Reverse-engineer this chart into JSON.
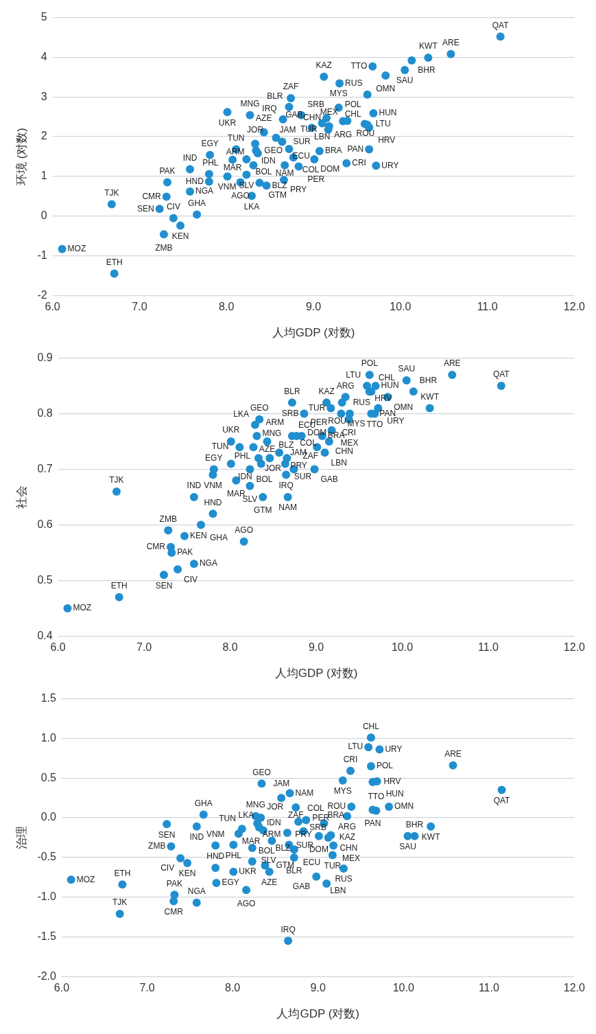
{
  "chart_data": [
    {
      "type": "scatter",
      "xlabel": "人均GDP (对数)",
      "ylabel": "环境 (对数)",
      "color": "#218fcf",
      "marker": "circle",
      "grid": "y",
      "xlim": [
        6,
        12
      ],
      "xticks": [
        {
          "value": 6,
          "label": "6.0"
        },
        {
          "value": 7,
          "label": "7.0"
        },
        {
          "value": 8,
          "label": "8.0"
        },
        {
          "value": 9,
          "label": "9.0"
        },
        {
          "value": 10,
          "label": "10.0"
        },
        {
          "value": 11,
          "label": "11.0"
        },
        {
          "value": 12,
          "label": "12.0"
        }
      ],
      "ylim": [
        -2,
        5
      ],
      "yticks": [
        -2,
        -1,
        0,
        1,
        2,
        3,
        4,
        5
      ],
      "x": [
        6.11,
        6.71,
        6.68,
        7.23,
        7.39,
        7.47,
        7.28,
        7.66,
        7.31,
        7.32,
        7.58,
        7.58,
        7.81,
        7.8,
        7.8,
        8.01,
        8.27,
        8.01,
        8.16,
        8.11,
        8.23,
        8.07,
        8.34,
        8.33,
        8.36,
        8.43,
        8.31,
        8.23,
        8.29,
        8.38,
        8.46,
        8.57,
        8.64,
        8.72,
        8.77,
        8.67,
        8.83,
        8.66,
        8.65,
        8.74,
        8.72,
        8.86,
        11.15,
        10.58,
        10.32,
        10.13,
        10.05,
        9.68,
        9.83,
        9.12,
        9.3,
        9.62,
        9.29,
        9.69,
        9.34,
        9.39,
        9.59,
        9.64,
        9.62,
        9.64,
        9.72,
        9.38,
        9.15,
        9.1,
        9.17,
        9.18,
        8.98,
        9.07,
        9.01
      ],
      "values": [
        -0.83,
        -1.45,
        0.3,
        0.18,
        -0.05,
        -0.24,
        -0.46,
        0.04,
        0.49,
        0.85,
        0.62,
        1.18,
        1.54,
        1.06,
        0.87,
        2.62,
        2.54,
        1.0,
        0.85,
        1.68,
        1.43,
        1.42,
        1.65,
        1.82,
        1.58,
        2.11,
        1.28,
        1.04,
        0.51,
        0.84,
        0.77,
        1.97,
        1.87,
        1.69,
        1.48,
        1.28,
        1.25,
        0.91,
        2.44,
        2.97,
        2.75,
        2.54,
        4.52,
        4.08,
        3.99,
        3.92,
        3.68,
        3.77,
        3.54,
        3.51,
        3.34,
        3.06,
        2.73,
        2.59,
        2.39,
        2.4,
        2.32,
        2.23,
        2.3,
        1.68,
        1.27,
        1.33,
        2.47,
        2.34,
        2.18,
        2.26,
        2.22,
        1.64,
        1.43
      ],
      "annotations": [
        {
          "text": "MOZ",
          "x": 6.11,
          "y": -0.83
        },
        {
          "text": "ETH",
          "x": 6.71,
          "y": -1.45
        },
        {
          "text": "TJK",
          "x": 6.68,
          "y": 0.3
        },
        {
          "text": "SEN",
          "x": 7.23,
          "y": 0.18
        },
        {
          "text": "CIV",
          "x": 7.39,
          "y": -0.05
        },
        {
          "text": "KEN",
          "x": 7.47,
          "y": -0.24
        },
        {
          "text": "ZMB",
          "x": 7.28,
          "y": -0.46
        },
        {
          "text": "GHA",
          "x": 7.66,
          "y": 0.04
        },
        {
          "text": "CMR",
          "x": 7.31,
          "y": 0.49
        },
        {
          "text": "PAK",
          "x": 7.32,
          "y": 0.85
        },
        {
          "text": "NGA",
          "x": 7.58,
          "y": 0.62
        },
        {
          "text": "IND",
          "x": 7.58,
          "y": 1.18
        },
        {
          "text": "EGY",
          "x": 7.81,
          "y": 1.54
        },
        {
          "text": "VNM",
          "x": 7.8,
          "y": 1.06
        },
        {
          "text": "HND",
          "x": 7.8,
          "y": 0.87
        },
        {
          "text": "UKR",
          "x": 8.01,
          "y": 2.62
        },
        {
          "text": "MNG",
          "x": 8.27,
          "y": 2.54
        },
        {
          "text": "PHL",
          "x": 8.01,
          "y": 1.0
        },
        {
          "text": "AGO",
          "x": 8.16,
          "y": 0.85
        },
        {
          "text": "TUN",
          "x": 8.11,
          "y": 1.68
        },
        {
          "text": "BOL",
          "x": 8.23,
          "y": 1.43
        },
        {
          "text": "MAR",
          "x": 8.07,
          "y": 1.42
        },
        {
          "text": "GEO",
          "x": 8.34,
          "y": 1.65
        },
        {
          "text": "JOR",
          "x": 8.33,
          "y": 1.82
        },
        {
          "text": "IDN",
          "x": 8.36,
          "y": 1.58
        },
        {
          "text": "AZE",
          "x": 8.43,
          "y": 2.11
        },
        {
          "text": "ARM",
          "x": 8.31,
          "y": 1.28
        },
        {
          "text": "SLV",
          "x": 8.23,
          "y": 1.04
        },
        {
          "text": "LKA",
          "x": 8.29,
          "y": 0.51
        },
        {
          "text": "GTM",
          "x": 8.38,
          "y": 0.84
        },
        {
          "text": "BLZ",
          "x": 8.46,
          "y": 0.77
        },
        {
          "text": "JAM",
          "x": 8.57,
          "y": 1.97
        },
        {
          "text": "SUR",
          "x": 8.64,
          "y": 1.87
        },
        {
          "text": "ECU",
          "x": 8.72,
          "y": 1.69
        },
        {
          "text": "COL",
          "x": 8.77,
          "y": 1.48
        },
        {
          "text": "NAM",
          "x": 8.67,
          "y": 1.28
        },
        {
          "text": "PER",
          "x": 8.83,
          "y": 1.25
        },
        {
          "text": "PRY",
          "x": 8.66,
          "y": 0.91
        },
        {
          "text": "IRQ",
          "x": 8.65,
          "y": 2.44
        },
        {
          "text": "ZAF",
          "x": 8.74,
          "y": 2.97
        },
        {
          "text": "BLR",
          "x": 8.72,
          "y": 2.75
        },
        {
          "text": "SRB",
          "x": 8.86,
          "y": 2.54
        },
        {
          "text": "QAT",
          "x": 11.15,
          "y": 4.52
        },
        {
          "text": "ARE",
          "x": 10.58,
          "y": 4.08
        },
        {
          "text": "KWT",
          "x": 10.32,
          "y": 3.99
        },
        {
          "text": "BHR",
          "x": 10.13,
          "y": 3.92
        },
        {
          "text": "SAU",
          "x": 10.05,
          "y": 3.68
        },
        {
          "text": "TTO",
          "x": 9.68,
          "y": 3.77
        },
        {
          "text": "OMN",
          "x": 9.83,
          "y": 3.54
        },
        {
          "text": "KAZ",
          "x": 9.12,
          "y": 3.51
        },
        {
          "text": "RUS",
          "x": 9.3,
          "y": 3.34
        },
        {
          "text": "POL",
          "x": 9.62,
          "y": 3.06
        },
        {
          "text": "MYS",
          "x": 9.29,
          "y": 2.73
        },
        {
          "text": "HUN",
          "x": 9.69,
          "y": 2.59
        },
        {
          "text": "ARG",
          "x": 9.34,
          "y": 2.39
        },
        {
          "text": "ROU",
          "x": 9.39,
          "y": 2.4
        },
        {
          "text": "LTU",
          "x": 9.59,
          "y": 2.32
        },
        {
          "text": "HRV",
          "x": 9.64,
          "y": 2.23
        },
        {
          "text": "CHL",
          "x": 9.62,
          "y": 2.3
        },
        {
          "text": "PAN",
          "x": 9.64,
          "y": 1.68
        },
        {
          "text": "URY",
          "x": 9.72,
          "y": 1.27
        },
        {
          "text": "CRI",
          "x": 9.38,
          "y": 1.33
        },
        {
          "text": "CHN",
          "x": 9.15,
          "y": 2.47
        },
        {
          "text": "LBN",
          "x": 9.1,
          "y": 2.34
        },
        {
          "text": "TUR",
          "x": 9.17,
          "y": 2.18
        },
        {
          "text": "MEX",
          "x": 9.18,
          "y": 2.26
        },
        {
          "text": "GAB",
          "x": 8.98,
          "y": 2.22
        },
        {
          "text": "BRA",
          "x": 9.07,
          "y": 1.64
        },
        {
          "text": "DOM",
          "x": 9.01,
          "y": 1.43
        }
      ]
    },
    {
      "type": "scatter",
      "xlabel": "人均GDP (对数)",
      "ylabel": "社会",
      "color": "#218fcf",
      "marker": "circle",
      "grid": "y",
      "xlim": [
        6,
        12
      ],
      "xticks": [
        {
          "value": 6,
          "label": "6.0"
        },
        {
          "value": 7,
          "label": "7.0"
        },
        {
          "value": 8,
          "label": "8.0"
        },
        {
          "value": 9,
          "label": "9.0"
        },
        {
          "value": 10,
          "label": "10.0"
        },
        {
          "value": 11,
          "label": "11.0"
        },
        {
          "value": 12,
          "label": "12.0"
        }
      ],
      "ylim": [
        0.4,
        0.9
      ],
      "yticks": [
        0.4,
        0.5,
        0.6,
        0.7,
        0.8,
        0.9
      ],
      "x": [
        6.11,
        6.71,
        6.68,
        7.23,
        7.39,
        7.47,
        7.28,
        7.66,
        7.31,
        7.32,
        7.58,
        7.58,
        7.81,
        7.8,
        7.8,
        8.01,
        8.27,
        8.01,
        8.16,
        8.11,
        8.23,
        8.07,
        8.34,
        8.33,
        8.36,
        8.43,
        8.31,
        8.23,
        8.29,
        8.38,
        8.46,
        8.57,
        8.64,
        8.72,
        8.77,
        8.67,
        8.83,
        8.66,
        8.65,
        8.74,
        8.72,
        8.86,
        11.15,
        10.58,
        10.32,
        10.13,
        10.05,
        9.68,
        9.83,
        9.12,
        9.3,
        9.62,
        9.29,
        9.69,
        9.34,
        9.39,
        9.59,
        9.64,
        9.62,
        9.64,
        9.72,
        9.38,
        9.15,
        9.1,
        9.17,
        9.18,
        8.98,
        9.07,
        9.01
      ],
      "values": [
        0.45,
        0.47,
        0.66,
        0.51,
        0.52,
        0.58,
        0.59,
        0.6,
        0.56,
        0.55,
        0.53,
        0.65,
        0.7,
        0.69,
        0.62,
        0.75,
        0.74,
        0.71,
        0.57,
        0.74,
        0.7,
        0.68,
        0.79,
        0.72,
        0.71,
        0.75,
        0.76,
        0.67,
        0.78,
        0.65,
        0.72,
        0.73,
        0.71,
        0.76,
        0.76,
        0.65,
        0.76,
        0.72,
        0.69,
        0.7,
        0.82,
        0.8,
        0.85,
        0.87,
        0.81,
        0.84,
        0.86,
        0.8,
        0.83,
        0.82,
        0.82,
        0.87,
        0.8,
        0.85,
        0.83,
        0.8,
        0.85,
        0.84,
        0.84,
        0.8,
        0.81,
        0.79,
        0.75,
        0.73,
        0.81,
        0.77,
        0.7,
        0.76,
        0.74
      ],
      "annotations": [
        {
          "text": "MOZ",
          "x": 6.11,
          "y": 0.45
        },
        {
          "text": "ETH",
          "x": 6.71,
          "y": 0.47
        },
        {
          "text": "TJK",
          "x": 6.68,
          "y": 0.66
        },
        {
          "text": "SEN",
          "x": 7.23,
          "y": 0.51
        },
        {
          "text": "CIV",
          "x": 7.39,
          "y": 0.52
        },
        {
          "text": "KEN",
          "x": 7.47,
          "y": 0.58
        },
        {
          "text": "ZMB",
          "x": 7.28,
          "y": 0.59
        },
        {
          "text": "GHA",
          "x": 7.66,
          "y": 0.6
        },
        {
          "text": "CMR",
          "x": 7.31,
          "y": 0.56
        },
        {
          "text": "PAK",
          "x": 7.32,
          "y": 0.55
        },
        {
          "text": "NGA",
          "x": 7.58,
          "y": 0.53
        },
        {
          "text": "IND",
          "x": 7.58,
          "y": 0.65
        },
        {
          "text": "EGY",
          "x": 7.81,
          "y": 0.7
        },
        {
          "text": "VNM",
          "x": 7.8,
          "y": 0.69
        },
        {
          "text": "HND",
          "x": 7.8,
          "y": 0.62
        },
        {
          "text": "UKR",
          "x": 8.01,
          "y": 0.75
        },
        {
          "text": "MNG",
          "x": 8.27,
          "y": 0.74
        },
        {
          "text": "PHL",
          "x": 8.01,
          "y": 0.71
        },
        {
          "text": "AGO",
          "x": 8.16,
          "y": 0.57
        },
        {
          "text": "TUN",
          "x": 8.11,
          "y": 0.74
        },
        {
          "text": "BOL",
          "x": 8.23,
          "y": 0.7
        },
        {
          "text": "MAR",
          "x": 8.07,
          "y": 0.68
        },
        {
          "text": "GEO",
          "x": 8.34,
          "y": 0.79
        },
        {
          "text": "JOR",
          "x": 8.33,
          "y": 0.72
        },
        {
          "text": "IDN",
          "x": 8.36,
          "y": 0.71
        },
        {
          "text": "AZE",
          "x": 8.43,
          "y": 0.75
        },
        {
          "text": "ARM",
          "x": 8.31,
          "y": 0.76
        },
        {
          "text": "SLV",
          "x": 8.23,
          "y": 0.67
        },
        {
          "text": "LKA",
          "x": 8.29,
          "y": 0.78
        },
        {
          "text": "GTM",
          "x": 8.38,
          "y": 0.65
        },
        {
          "text": "BLZ",
          "x": 8.46,
          "y": 0.72
        },
        {
          "text": "JAM",
          "x": 8.57,
          "y": 0.73
        },
        {
          "text": "SUR",
          "x": 8.64,
          "y": 0.71
        },
        {
          "text": "ECU",
          "x": 8.72,
          "y": 0.76
        },
        {
          "text": "COL",
          "x": 8.77,
          "y": 0.76
        },
        {
          "text": "NAM",
          "x": 8.67,
          "y": 0.65
        },
        {
          "text": "PER",
          "x": 8.83,
          "y": 0.76
        },
        {
          "text": "PRY",
          "x": 8.66,
          "y": 0.72
        },
        {
          "text": "IRQ",
          "x": 8.65,
          "y": 0.69
        },
        {
          "text": "ZAF",
          "x": 8.74,
          "y": 0.7
        },
        {
          "text": "BLR",
          "x": 8.72,
          "y": 0.82
        },
        {
          "text": "SRB",
          "x": 8.86,
          "y": 0.8
        },
        {
          "text": "QAT",
          "x": 11.15,
          "y": 0.85
        },
        {
          "text": "ARE",
          "x": 10.58,
          "y": 0.87
        },
        {
          "text": "KWT",
          "x": 10.32,
          "y": 0.81
        },
        {
          "text": "BHR",
          "x": 10.13,
          "y": 0.84
        },
        {
          "text": "SAU",
          "x": 10.05,
          "y": 0.86
        },
        {
          "text": "TTO",
          "x": 9.68,
          "y": 0.8
        },
        {
          "text": "OMN",
          "x": 9.83,
          "y": 0.83
        },
        {
          "text": "KAZ",
          "x": 9.12,
          "y": 0.82
        },
        {
          "text": "RUS",
          "x": 9.3,
          "y": 0.82
        },
        {
          "text": "POL",
          "x": 9.62,
          "y": 0.87
        },
        {
          "text": "MYS",
          "x": 9.29,
          "y": 0.8
        },
        {
          "text": "HUN",
          "x": 9.69,
          "y": 0.85
        },
        {
          "text": "ARG",
          "x": 9.34,
          "y": 0.83
        },
        {
          "text": "ROU",
          "x": 9.39,
          "y": 0.8
        },
        {
          "text": "LTU",
          "x": 9.59,
          "y": 0.85
        },
        {
          "text": "HRV",
          "x": 9.64,
          "y": 0.84
        },
        {
          "text": "CHL",
          "x": 9.62,
          "y": 0.84
        },
        {
          "text": "PAN",
          "x": 9.64,
          "y": 0.8
        },
        {
          "text": "URY",
          "x": 9.72,
          "y": 0.81
        },
        {
          "text": "CRI",
          "x": 9.38,
          "y": 0.79
        },
        {
          "text": "CHN",
          "x": 9.15,
          "y": 0.75
        },
        {
          "text": "LBN",
          "x": 9.1,
          "y": 0.73
        },
        {
          "text": "TUR",
          "x": 9.17,
          "y": 0.81
        },
        {
          "text": "MEX",
          "x": 9.18,
          "y": 0.77
        },
        {
          "text": "GAB",
          "x": 8.98,
          "y": 0.7
        },
        {
          "text": "BRA",
          "x": 9.07,
          "y": 0.76
        },
        {
          "text": "DOM",
          "x": 9.01,
          "y": 0.74
        }
      ]
    },
    {
      "type": "scatter",
      "xlabel": "人均GDP (对数)",
      "ylabel": "治理",
      "color": "#218fcf",
      "marker": "circle",
      "grid": "y",
      "xlim": [
        6,
        12
      ],
      "xticks": [
        {
          "value": 6,
          "label": "6.0"
        },
        {
          "value": 7,
          "label": "7.0"
        },
        {
          "value": 8,
          "label": "8.0"
        },
        {
          "value": 9,
          "label": "9.0"
        },
        {
          "value": 10,
          "label": "10.0"
        },
        {
          "value": 11,
          "label": "11.0"
        },
        {
          "value": 12,
          "label": "12.0"
        }
      ],
      "ylim": [
        -2,
        1.5
      ],
      "yticks": [
        {
          "value": -2,
          "label": "-2.0"
        },
        -1.5,
        {
          "value": -1,
          "label": "-1.0"
        },
        -0.5,
        {
          "value": 0,
          "label": "0.0"
        },
        0.5,
        {
          "value": 1,
          "label": "1.0"
        },
        1.5
      ],
      "x": [
        6.11,
        6.71,
        6.68,
        7.23,
        7.39,
        7.47,
        7.28,
        7.66,
        7.31,
        7.32,
        7.58,
        7.58,
        7.81,
        7.8,
        7.8,
        8.01,
        8.27,
        8.01,
        8.16,
        8.11,
        8.23,
        8.07,
        8.34,
        8.33,
        8.36,
        8.43,
        8.31,
        8.23,
        8.29,
        8.38,
        8.46,
        8.57,
        8.64,
        8.72,
        8.77,
        8.67,
        8.83,
        8.66,
        8.65,
        8.74,
        8.72,
        8.86,
        11.15,
        10.58,
        10.32,
        10.13,
        10.05,
        9.68,
        9.83,
        9.12,
        9.3,
        9.62,
        9.29,
        9.69,
        9.34,
        9.39,
        9.59,
        9.64,
        9.62,
        9.64,
        9.72,
        9.38,
        9.15,
        9.1,
        9.17,
        9.18,
        8.98,
        9.07,
        9.01
      ],
      "values": [
        -0.78,
        -0.84,
        -1.21,
        -0.08,
        -0.51,
        -0.57,
        -0.36,
        0.04,
        -1.05,
        -0.97,
        -1.07,
        -0.11,
        -0.82,
        -0.35,
        -0.63,
        -0.68,
        0.02,
        -0.34,
        -0.91,
        -0.14,
        -0.55,
        -0.2,
        0.43,
        0.0,
        -0.16,
        -0.68,
        -0.12,
        -0.38,
        -0.07,
        -0.6,
        -0.29,
        0.25,
        -0.19,
        -0.4,
        -0.05,
        0.31,
        -0.17,
        -0.34,
        -1.55,
        0.13,
        -0.5,
        -0.03,
        0.35,
        0.66,
        -0.11,
        -0.23,
        -0.23,
        0.09,
        0.14,
        -0.25,
        -0.64,
        0.65,
        0.47,
        0.46,
        0.02,
        0.14,
        0.89,
        0.45,
        1.01,
        0.1,
        0.86,
        0.59,
        -0.22,
        -0.83,
        -0.47,
        -0.35,
        -0.74,
        -0.07,
        -0.23
      ],
      "annotations": [
        {
          "text": "MOZ",
          "x": 6.11,
          "y": -0.78
        },
        {
          "text": "ETH",
          "x": 6.71,
          "y": -0.84
        },
        {
          "text": "TJK",
          "x": 6.68,
          "y": -1.21
        },
        {
          "text": "SEN",
          "x": 7.23,
          "y": -0.08
        },
        {
          "text": "CIV",
          "x": 7.39,
          "y": -0.51
        },
        {
          "text": "KEN",
          "x": 7.47,
          "y": -0.57
        },
        {
          "text": "ZMB",
          "x": 7.28,
          "y": -0.36
        },
        {
          "text": "GHA",
          "x": 7.66,
          "y": 0.04
        },
        {
          "text": "CMR",
          "x": 7.31,
          "y": -1.05
        },
        {
          "text": "PAK",
          "x": 7.32,
          "y": -0.97
        },
        {
          "text": "NGA",
          "x": 7.58,
          "y": -1.07
        },
        {
          "text": "IND",
          "x": 7.58,
          "y": -0.11
        },
        {
          "text": "EGY",
          "x": 7.81,
          "y": -0.82
        },
        {
          "text": "VNM",
          "x": 7.8,
          "y": -0.35
        },
        {
          "text": "HND",
          "x": 7.8,
          "y": -0.63
        },
        {
          "text": "UKR",
          "x": 8.01,
          "y": -0.68
        },
        {
          "text": "MNG",
          "x": 8.27,
          "y": 0.02
        },
        {
          "text": "PHL",
          "x": 8.01,
          "y": -0.34
        },
        {
          "text": "AGO",
          "x": 8.16,
          "y": -0.91
        },
        {
          "text": "TUN",
          "x": 8.11,
          "y": -0.14
        },
        {
          "text": "BOL",
          "x": 8.23,
          "y": -0.55
        },
        {
          "text": "MAR",
          "x": 8.07,
          "y": -0.2
        },
        {
          "text": "GEO",
          "x": 8.34,
          "y": 0.43
        },
        {
          "text": "JOR",
          "x": 8.33,
          "y": 0.0
        },
        {
          "text": "IDN",
          "x": 8.36,
          "y": -0.16
        },
        {
          "text": "AZE",
          "x": 8.43,
          "y": -0.68
        },
        {
          "text": "ARM",
          "x": 8.31,
          "y": -0.12
        },
        {
          "text": "SLV",
          "x": 8.23,
          "y": -0.38
        },
        {
          "text": "LKA",
          "x": 8.29,
          "y": -0.07
        },
        {
          "text": "GTM",
          "x": 8.38,
          "y": -0.6
        },
        {
          "text": "BLZ",
          "x": 8.46,
          "y": -0.29
        },
        {
          "text": "JAM",
          "x": 8.57,
          "y": 0.25
        },
        {
          "text": "SUR",
          "x": 8.64,
          "y": -0.19
        },
        {
          "text": "ECU",
          "x": 8.72,
          "y": -0.4
        },
        {
          "text": "COL",
          "x": 8.77,
          "y": -0.05
        },
        {
          "text": "NAM",
          "x": 8.67,
          "y": 0.31
        },
        {
          "text": "PER",
          "x": 8.83,
          "y": -0.17
        },
        {
          "text": "PRY",
          "x": 8.66,
          "y": -0.34
        },
        {
          "text": "IRQ",
          "x": 8.65,
          "y": -1.55
        },
        {
          "text": "ZAF",
          "x": 8.74,
          "y": 0.13
        },
        {
          "text": "BLR",
          "x": 8.72,
          "y": -0.5
        },
        {
          "text": "SRB",
          "x": 8.86,
          "y": -0.03
        },
        {
          "text": "QAT",
          "x": 11.15,
          "y": 0.35
        },
        {
          "text": "ARE",
          "x": 10.58,
          "y": 0.66
        },
        {
          "text": "KWT",
          "x": 10.32,
          "y": -0.11
        },
        {
          "text": "BHR",
          "x": 10.13,
          "y": -0.23
        },
        {
          "text": "SAU",
          "x": 10.05,
          "y": -0.23
        },
        {
          "text": "TTO",
          "x": 9.68,
          "y": 0.09
        },
        {
          "text": "OMN",
          "x": 9.83,
          "y": 0.14
        },
        {
          "text": "KAZ",
          "x": 9.12,
          "y": -0.25
        },
        {
          "text": "RUS",
          "x": 9.3,
          "y": -0.64
        },
        {
          "text": "POL",
          "x": 9.62,
          "y": 0.65
        },
        {
          "text": "MYS",
          "x": 9.29,
          "y": 0.47
        },
        {
          "text": "HUN",
          "x": 9.69,
          "y": 0.46
        },
        {
          "text": "ARG",
          "x": 9.34,
          "y": 0.02
        },
        {
          "text": "ROU",
          "x": 9.39,
          "y": 0.14
        },
        {
          "text": "LTU",
          "x": 9.59,
          "y": 0.89
        },
        {
          "text": "HRV",
          "x": 9.64,
          "y": 0.45
        },
        {
          "text": "CHL",
          "x": 9.62,
          "y": 1.01
        },
        {
          "text": "PAN",
          "x": 9.64,
          "y": 0.1
        },
        {
          "text": "URY",
          "x": 9.72,
          "y": 0.86
        },
        {
          "text": "CRI",
          "x": 9.38,
          "y": 0.59
        },
        {
          "text": "CHN",
          "x": 9.15,
          "y": -0.22
        },
        {
          "text": "LBN",
          "x": 9.1,
          "y": -0.83
        },
        {
          "text": "TUR",
          "x": 9.17,
          "y": -0.47
        },
        {
          "text": "MEX",
          "x": 9.18,
          "y": -0.35
        },
        {
          "text": "GAB",
          "x": 8.98,
          "y": -0.74
        },
        {
          "text": "BRA",
          "x": 9.07,
          "y": -0.07
        },
        {
          "text": "DOM",
          "x": 9.01,
          "y": -0.23
        }
      ]
    }
  ]
}
